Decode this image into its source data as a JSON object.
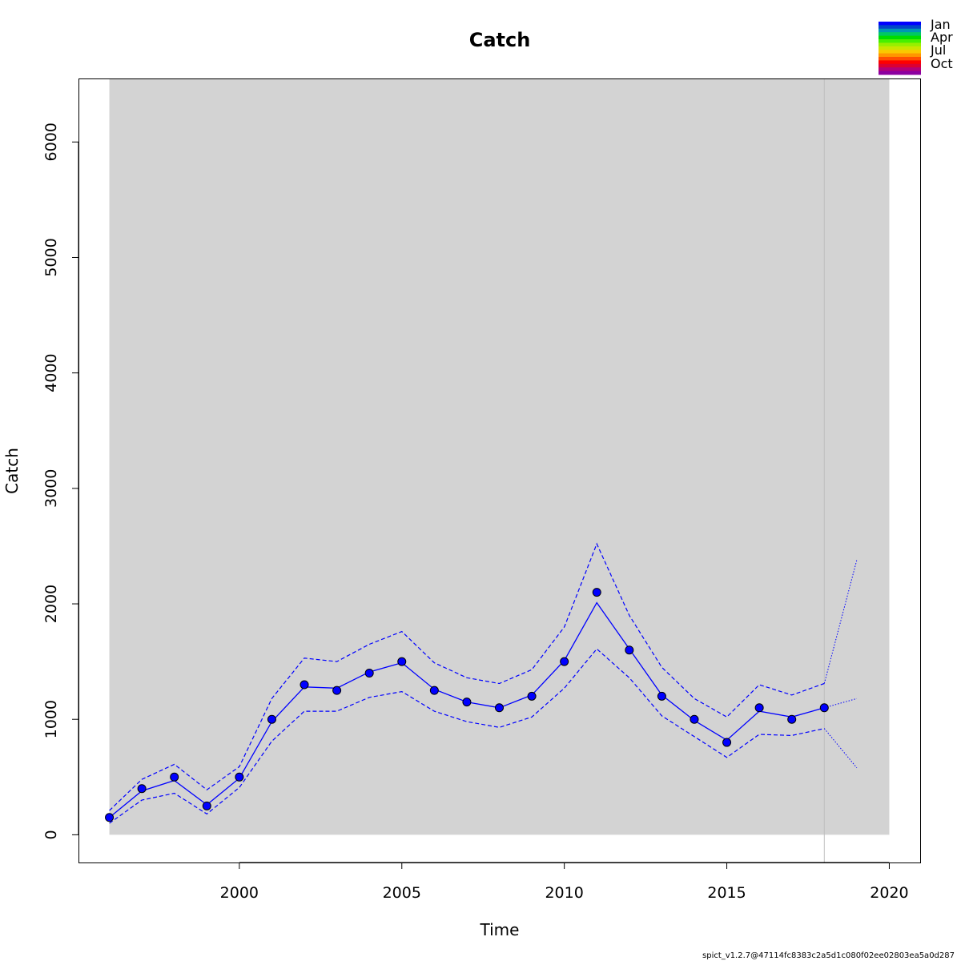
{
  "chart_data": {
    "type": "line",
    "title": "Catch",
    "xlabel": "Time",
    "ylabel": "Catch",
    "xlim": [
      1995.05,
      2020.95
    ],
    "ylim": [
      -240,
      6550
    ],
    "x_ticks": [
      2000,
      2005,
      2010,
      2015,
      2020
    ],
    "y_ticks": [
      0,
      1000,
      2000,
      3000,
      4000,
      5000,
      6000
    ],
    "shaded_region": {
      "x_start": 1996,
      "x_end": 2020,
      "y_start": 0,
      "y_end": 6550,
      "color": "#d3d3d3"
    },
    "vertical_line": {
      "x": 2018,
      "color": "#bebebe"
    },
    "observed": {
      "x": [
        1996,
        1997,
        1998,
        1999,
        2000,
        2001,
        2002,
        2003,
        2004,
        2005,
        2006,
        2007,
        2008,
        2009,
        2010,
        2011,
        2012,
        2013,
        2014,
        2015,
        2016,
        2017,
        2018
      ],
      "y": [
        150,
        400,
        500,
        250,
        500,
        1000,
        1300,
        1250,
        1400,
        1500,
        1250,
        1150,
        1100,
        1200,
        1500,
        2100,
        1600,
        1200,
        1000,
        800,
        1100,
        1000,
        1100
      ],
      "color": "#0000ff"
    },
    "series": [
      {
        "role": "estimate",
        "x": [
          1996,
          1997,
          1998,
          1999,
          2000,
          2001,
          2002,
          2003,
          2004,
          2005,
          2006,
          2007,
          2008,
          2009,
          2010,
          2011,
          2012,
          2013,
          2014,
          2015,
          2016,
          2017,
          2018
        ],
        "values": [
          150,
          380,
          470,
          260,
          490,
          980,
          1280,
          1270,
          1410,
          1490,
          1260,
          1150,
          1100,
          1210,
          1510,
          2010,
          1610,
          1210,
          990,
          820,
          1070,
          1020,
          1100
        ]
      },
      {
        "role": "upper-ci",
        "x": [
          1996,
          1997,
          1998,
          1999,
          2000,
          2001,
          2002,
          2003,
          2004,
          2005,
          2006,
          2007,
          2008,
          2009,
          2010,
          2011,
          2012,
          2013,
          2014,
          2015,
          2016,
          2017,
          2018
        ],
        "values": [
          210,
          480,
          610,
          390,
          590,
          1180,
          1530,
          1500,
          1650,
          1760,
          1490,
          1360,
          1310,
          1430,
          1800,
          2520,
          1900,
          1450,
          1180,
          1020,
          1300,
          1210,
          1310
        ]
      },
      {
        "role": "lower-ci",
        "x": [
          1996,
          1997,
          1998,
          1999,
          2000,
          2001,
          2002,
          2003,
          2004,
          2005,
          2006,
          2007,
          2008,
          2009,
          2010,
          2011,
          2012,
          2013,
          2014,
          2015,
          2016,
          2017,
          2018
        ],
        "values": [
          100,
          300,
          360,
          180,
          410,
          810,
          1070,
          1070,
          1190,
          1240,
          1070,
          980,
          930,
          1020,
          1270,
          1610,
          1360,
          1030,
          850,
          670,
          870,
          860,
          920
        ]
      },
      {
        "role": "forecast-estimate",
        "x": [
          2018,
          2019
        ],
        "values": [
          1100,
          1180
        ]
      },
      {
        "role": "forecast-upper",
        "x": [
          2018,
          2019
        ],
        "values": [
          1310,
          2380
        ]
      },
      {
        "role": "forecast-lower",
        "x": [
          2018,
          2019
        ],
        "values": [
          920,
          580
        ]
      }
    ],
    "legend": {
      "position": "top-right",
      "labels": [
        "Jan",
        "Apr",
        "Jul",
        "Oct"
      ],
      "color_bands": [
        "#0000ff",
        "#0046c8",
        "#0096b4",
        "#00c864",
        "#00dc00",
        "#46f000",
        "#96f000",
        "#c8e600",
        "#fac800",
        "#ff9600",
        "#ff5000",
        "#ff0000",
        "#dc0032",
        "#b40078",
        "#8c00a0"
      ]
    },
    "grid": false,
    "footer": "spict_v1.2.7@47114fc8383c2a5d1c080f02ee02803ea5a0d287"
  }
}
